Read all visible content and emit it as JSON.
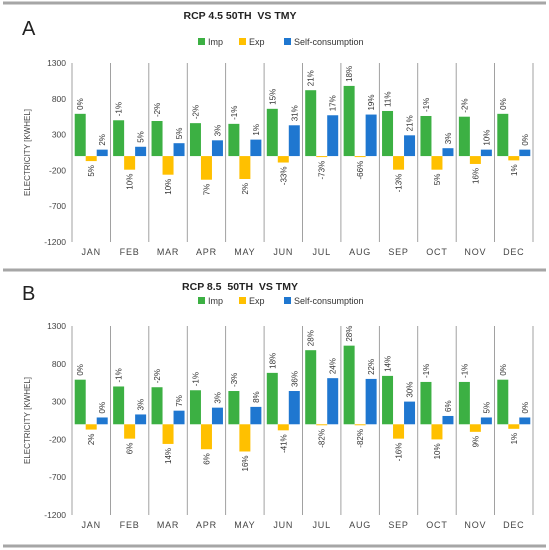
{
  "chart_data": [
    {
      "panel_label": "A",
      "type": "bar",
      "title": "RCP 4.5 50TH  VS TMY",
      "xlabel": "",
      "ylabel": "ELECTRICITY [KWHEL]",
      "ylim": [
        -1200,
        1300
      ],
      "yticks": [
        1300,
        800,
        300,
        -200,
        -700,
        -1200
      ],
      "grid": false,
      "legend_position": "top",
      "categories": [
        "JAN",
        "FEB",
        "MAR",
        "APR",
        "MAY",
        "JUN",
        "JUL",
        "AUG",
        "SEP",
        "OCT",
        "NOV",
        "DEC"
      ],
      "series": [
        {
          "name": "Imp",
          "color": "#3cb043",
          "values": [
            590,
            500,
            490,
            460,
            450,
            660,
            920,
            980,
            630,
            560,
            550,
            590
          ],
          "labels": [
            "0%",
            "-1%",
            "-2%",
            "-2%",
            "-1%",
            "15%",
            "21%",
            "18%",
            "11%",
            "-1%",
            "-2%",
            "0%"
          ]
        },
        {
          "name": "Exp",
          "color": "#ffc000",
          "values": [
            -70,
            -190,
            -260,
            -330,
            -320,
            -90,
            -10,
            -10,
            -190,
            -190,
            -110,
            -60
          ],
          "labels": [
            "5%",
            "10%",
            "10%",
            "7%",
            "2%",
            "-33%",
            "-73%",
            "-66%",
            "-13%",
            "5%",
            "16%",
            "1%"
          ]
        },
        {
          "name": "Self-consumption",
          "color": "#1f77d0",
          "values": [
            90,
            130,
            180,
            220,
            230,
            430,
            570,
            580,
            290,
            110,
            90,
            90
          ],
          "labels": [
            "2%",
            "5%",
            "5%",
            "3%",
            "1%",
            "31%",
            "17%",
            "19%",
            "21%",
            "3%",
            "10%",
            "0%"
          ]
        }
      ]
    },
    {
      "panel_label": "B",
      "type": "bar",
      "title": "RCP 8.5  50TH  VS TMY",
      "xlabel": "",
      "ylabel": "ELECTRICITY [KWHEL]",
      "ylim": [
        -1200,
        1300
      ],
      "yticks": [
        1300,
        800,
        300,
        -200,
        -700,
        -1200
      ],
      "grid": false,
      "legend_position": "top",
      "categories": [
        "JAN",
        "FEB",
        "MAR",
        "APR",
        "MAY",
        "JUN",
        "JUL",
        "AUG",
        "SEP",
        "OCT",
        "NOV",
        "DEC"
      ],
      "series": [
        {
          "name": "Imp",
          "color": "#3cb043",
          "values": [
            590,
            500,
            490,
            450,
            440,
            680,
            980,
            1040,
            640,
            560,
            560,
            590
          ],
          "labels": [
            "0%",
            "-1%",
            "-2%",
            "-1%",
            "-3%",
            "18%",
            "28%",
            "28%",
            "14%",
            "-1%",
            "-1%",
            "0%"
          ]
        },
        {
          "name": "Exp",
          "color": "#ffc000",
          "values": [
            -70,
            -190,
            -260,
            -330,
            -360,
            -80,
            -10,
            -10,
            -190,
            -200,
            -100,
            -60
          ],
          "labels": [
            "2%",
            "6%",
            "14%",
            "6%",
            "16%",
            "-41%",
            "-82%",
            "-82%",
            "-16%",
            "10%",
            "9%",
            "1%"
          ]
        },
        {
          "name": "Self-consumption",
          "color": "#1f77d0",
          "values": [
            90,
            130,
            180,
            220,
            230,
            440,
            610,
            600,
            300,
            110,
            90,
            90
          ],
          "labels": [
            "0%",
            "3%",
            "7%",
            "3%",
            "8%",
            "36%",
            "24%",
            "22%",
            "30%",
            "6%",
            "5%",
            "0%"
          ]
        }
      ]
    }
  ]
}
